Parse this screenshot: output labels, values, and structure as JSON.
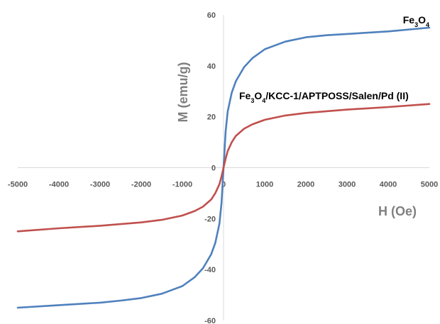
{
  "chart_data": {
    "type": "line",
    "xlabel": "H (Oe)",
    "ylabel": "M (emu/g)",
    "xlim": [
      -5000,
      5000
    ],
    "ylim": [
      -60,
      60
    ],
    "x_ticks": [
      -5000,
      -4000,
      -3000,
      -2000,
      -1000,
      0,
      1000,
      2000,
      3000,
      4000,
      5000
    ],
    "y_ticks": [
      60,
      40,
      20,
      0,
      -20,
      -40,
      -60
    ],
    "x_tick_labels": [
      "-5000",
      "-4000",
      "-3000",
      "-2000",
      "-1000",
      "0",
      "1000",
      "2000",
      "3000",
      "4000",
      "5000"
    ],
    "y_tick_labels": [
      "60",
      "40",
      "20",
      "0",
      "-20",
      "-40",
      "-60"
    ],
    "grid": false,
    "series": [
      {
        "name_parts": [
          {
            "text": "Fe",
            "sub": false
          },
          {
            "text": "3",
            "sub": true
          },
          {
            "text": "O",
            "sub": false
          },
          {
            "text": "4",
            "sub": true
          }
        ],
        "color": "#4f81bd",
        "x": [
          -5000,
          -4000,
          -3000,
          -2500,
          -2000,
          -1500,
          -1000,
          -700,
          -500,
          -300,
          -200,
          -100,
          -50,
          0,
          50,
          100,
          200,
          300,
          500,
          700,
          1000,
          1500,
          2000,
          2500,
          3000,
          4000,
          5000
        ],
        "y": [
          -55,
          -54,
          -53,
          -52.2,
          -51.2,
          -49.5,
          -46.5,
          -43,
          -39.5,
          -34,
          -29.5,
          -22,
          -14,
          0,
          14,
          22,
          29.5,
          34,
          39.5,
          43,
          46.5,
          49.5,
          51.2,
          52,
          52.5,
          53.5,
          55
        ]
      },
      {
        "name_parts": [
          {
            "text": "Fe",
            "sub": false
          },
          {
            "text": "3",
            "sub": true
          },
          {
            "text": "O",
            "sub": false
          },
          {
            "text": "4",
            "sub": true
          },
          {
            "text": "/KCC-1/APTPOSS/Salen/Pd (II)",
            "sub": false
          }
        ],
        "color": "#c0504d",
        "x": [
          -5000,
          -4000,
          -3000,
          -2000,
          -1500,
          -1000,
          -700,
          -500,
          -300,
          -200,
          -100,
          -50,
          0,
          50,
          100,
          200,
          300,
          500,
          700,
          1000,
          1500,
          2000,
          3000,
          4000,
          5000
        ],
        "y": [
          -25,
          -23.8,
          -22.8,
          -21.5,
          -20.5,
          -18.8,
          -17,
          -15.3,
          -12.5,
          -10,
          -6.5,
          -3.5,
          0,
          3.5,
          6.5,
          10,
          12.5,
          15.3,
          17,
          18.8,
          20.5,
          21.5,
          22.8,
          23.8,
          25
        ]
      }
    ]
  }
}
